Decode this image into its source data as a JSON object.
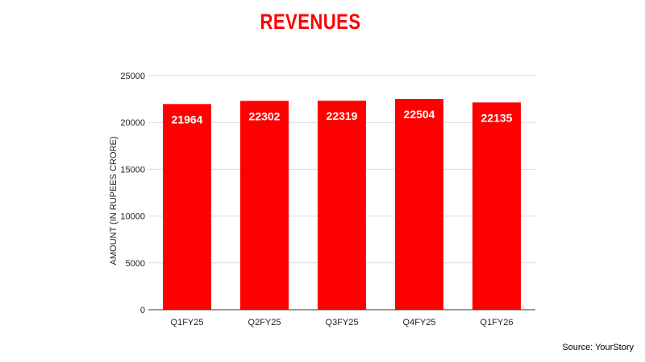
{
  "chart_data": {
    "type": "bar",
    "title": "REVENUES",
    "xlabel": "",
    "ylabel": "AMOUNT (IN RUPEES CRORE)",
    "categories": [
      "Q1FY25",
      "Q2FY25",
      "Q3FY25",
      "Q4FY25",
      "Q1FY26"
    ],
    "values": [
      21964,
      22302,
      22319,
      22504,
      22135
    ],
    "data_labels": [
      "21964",
      "22302",
      "22319",
      "22504",
      "22135"
    ],
    "ylim": [
      0,
      25000
    ],
    "yticks": [
      0,
      5000,
      10000,
      15000,
      20000,
      25000
    ],
    "ytick_labels": [
      "0",
      "5000",
      "10000",
      "15000",
      "20000",
      "25000"
    ],
    "grid": true,
    "legend": "none",
    "colors": {
      "bar": "#ff0000",
      "title": "#ff0000",
      "grid": "#d9d9d9",
      "axis": "#333333",
      "data_label": "#ffffff"
    }
  },
  "source": "Source: YourStory"
}
